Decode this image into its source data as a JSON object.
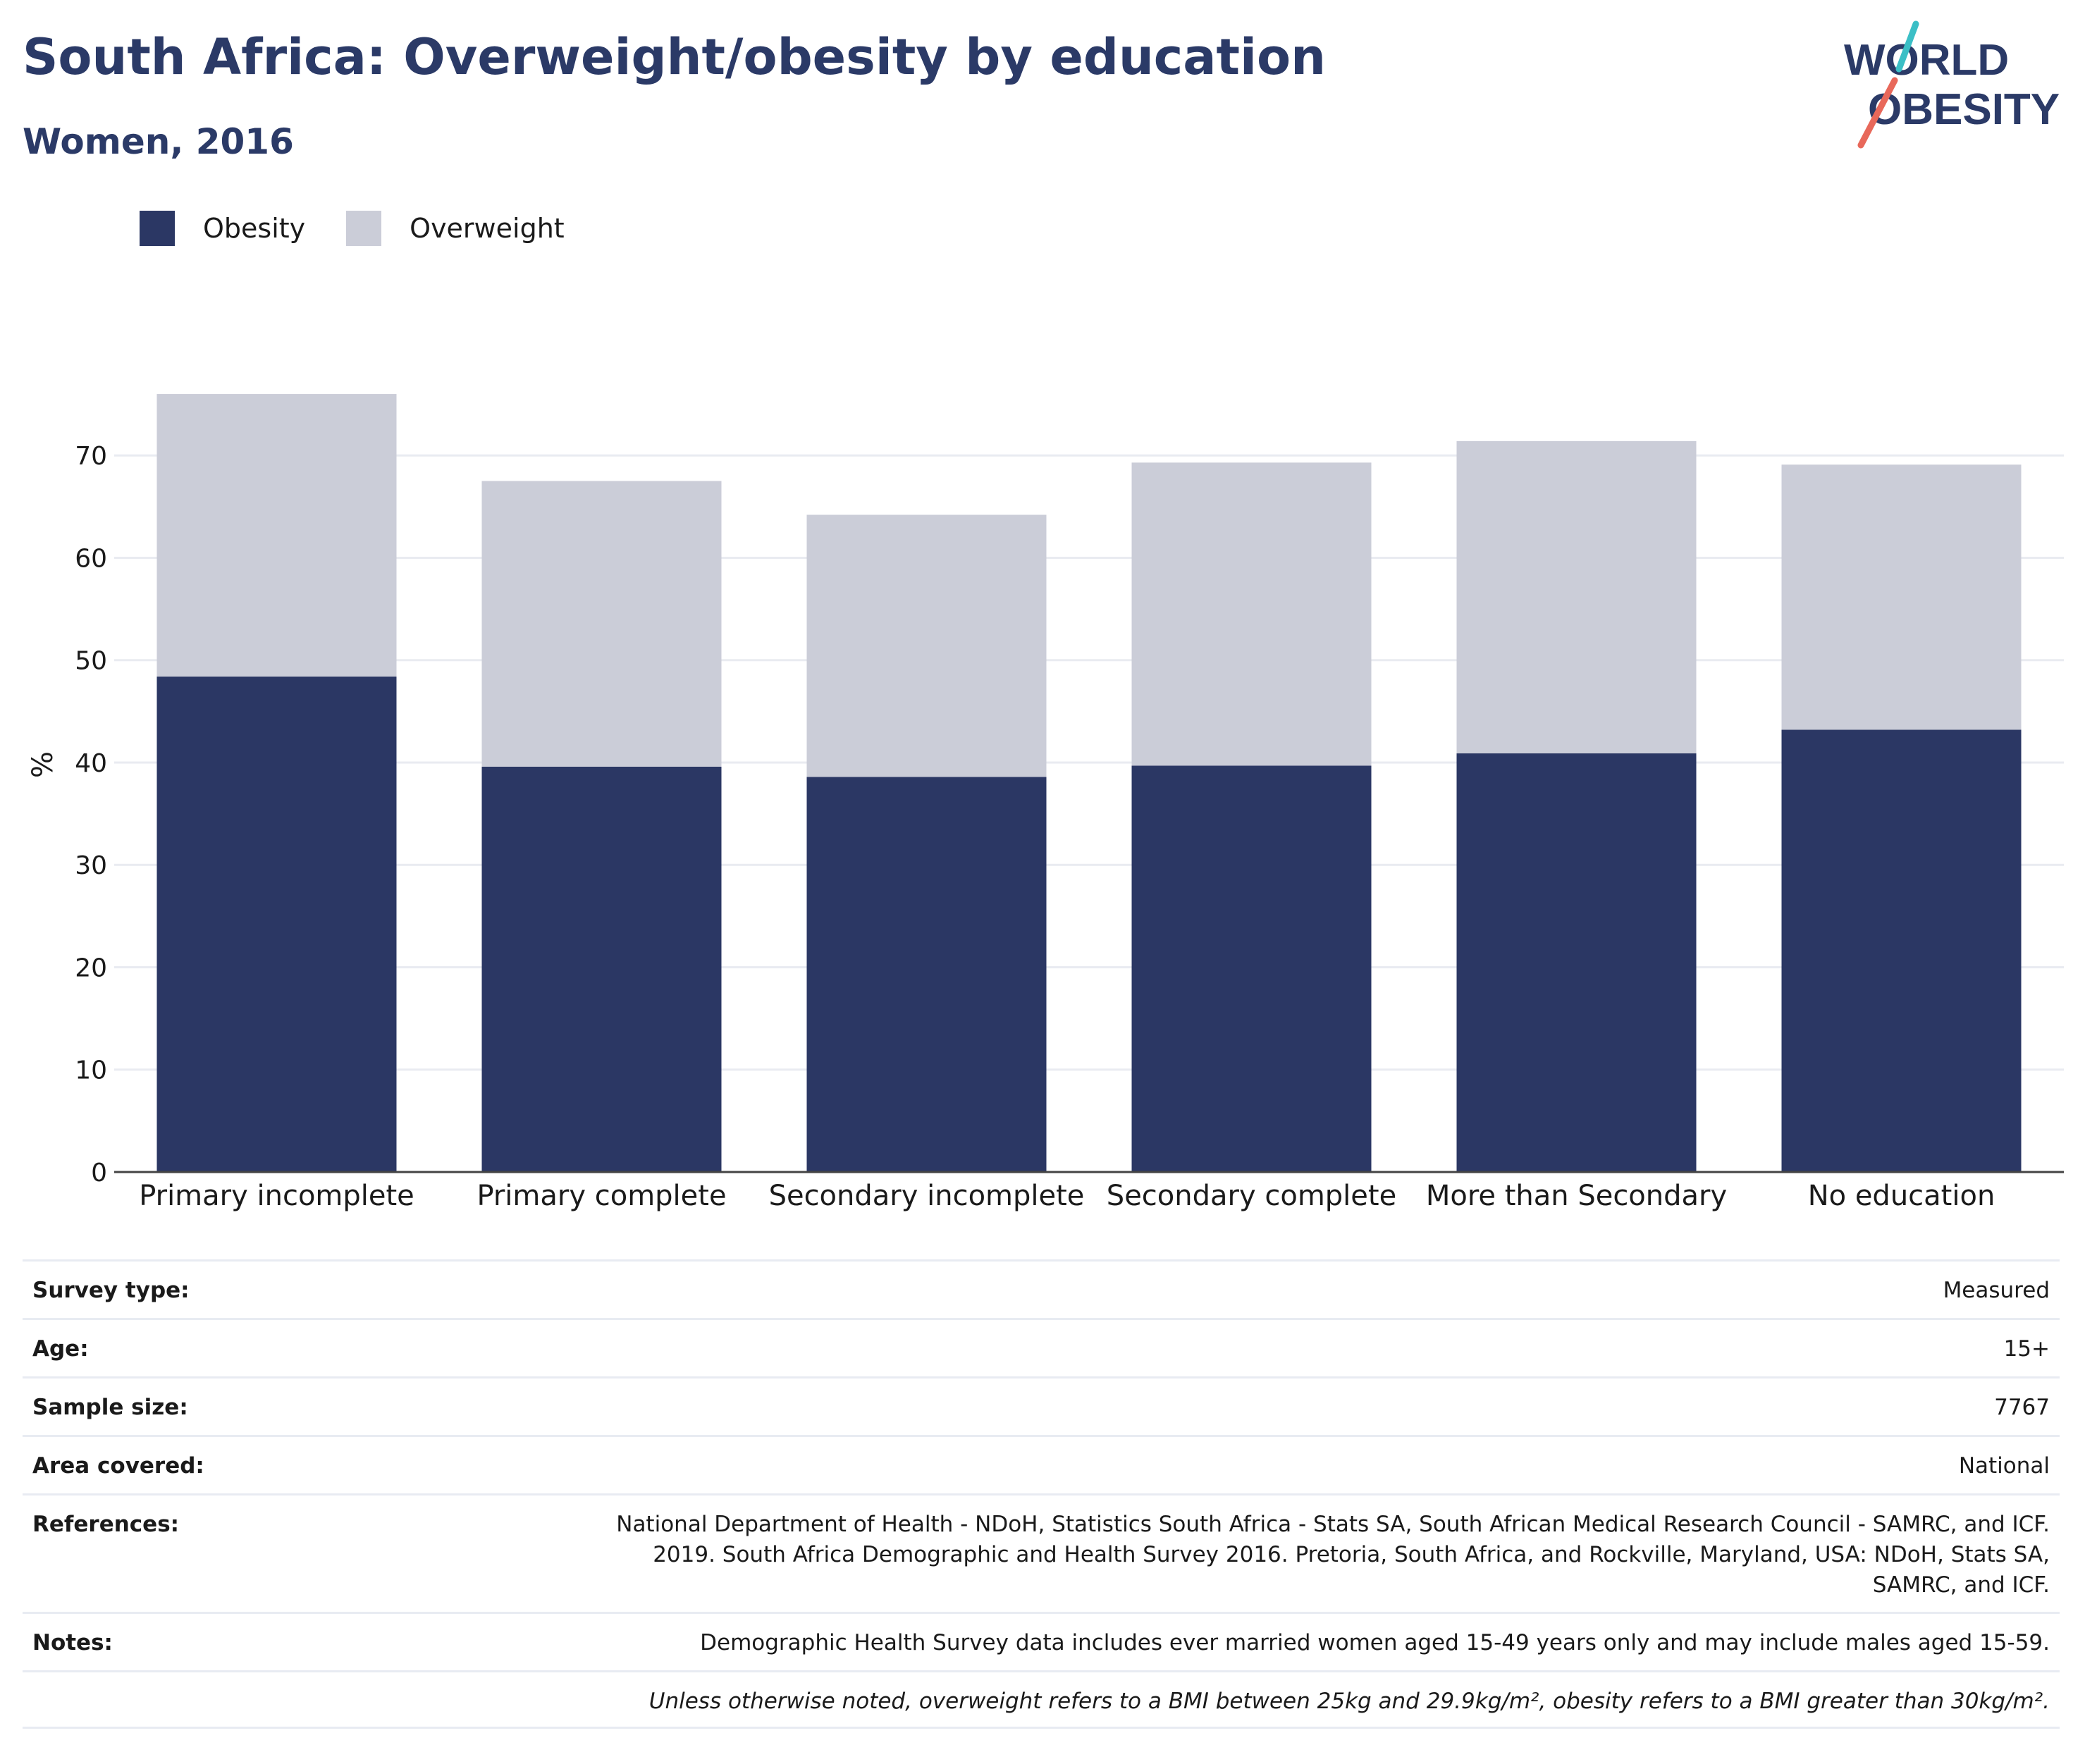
{
  "header": {
    "title": "South Africa: Overweight/obesity by education",
    "subtitle": "Women, 2016"
  },
  "logo": {
    "line1": "WORLD",
    "line2": "OBESITY"
  },
  "legend": [
    {
      "label": "Obesity",
      "color": "#2b3764"
    },
    {
      "label": "Overweight",
      "color": "#cbcdd8"
    }
  ],
  "chart_data": {
    "type": "bar",
    "stacked": true,
    "categories": [
      "Primary incomplete",
      "Primary complete",
      "Secondary incomplete",
      "Secondary complete",
      "More than Secondary",
      "No education"
    ],
    "series": [
      {
        "name": "Obesity",
        "color": "#2b3764",
        "values": [
          48.4,
          39.6,
          38.6,
          39.7,
          40.9,
          43.2
        ]
      },
      {
        "name": "Overweight",
        "color": "#cbcdd8",
        "values": [
          27.6,
          27.9,
          25.6,
          29.6,
          30.5,
          25.9
        ]
      }
    ],
    "ylabel": "%",
    "yticks": [
      0,
      10,
      20,
      30,
      40,
      50,
      60,
      70
    ],
    "ylim": [
      0,
      78
    ],
    "grid": true,
    "legend_position": "top-left"
  },
  "info": {
    "survey_type": {
      "label": "Survey type:",
      "value": "Measured"
    },
    "age": {
      "label": "Age:",
      "value": "15+"
    },
    "sample_size": {
      "label": "Sample size:",
      "value": "7767"
    },
    "area": {
      "label": "Area covered:",
      "value": "National"
    },
    "references": {
      "label": "References:",
      "line1": "National Department of Health - NDoH, Statistics South Africa - Stats SA, South African Medical Research Council - SAMRC, and ICF.",
      "line2": "2019. South Africa Demographic and Health Survey 2016. Pretoria, South Africa, and Rockville, Maryland, USA: NDoH, Stats SA,",
      "line3": "SAMRC, and ICF."
    },
    "notes": {
      "label": "Notes:",
      "value": "Demographic Health Survey data includes ever married women aged 15-49 years only and may include males aged 15-59."
    },
    "definition": "Unless otherwise noted, overweight refers to a BMI between 25kg and 29.9kg/m², obesity refers to a BMI greater than 30kg/m²."
  }
}
